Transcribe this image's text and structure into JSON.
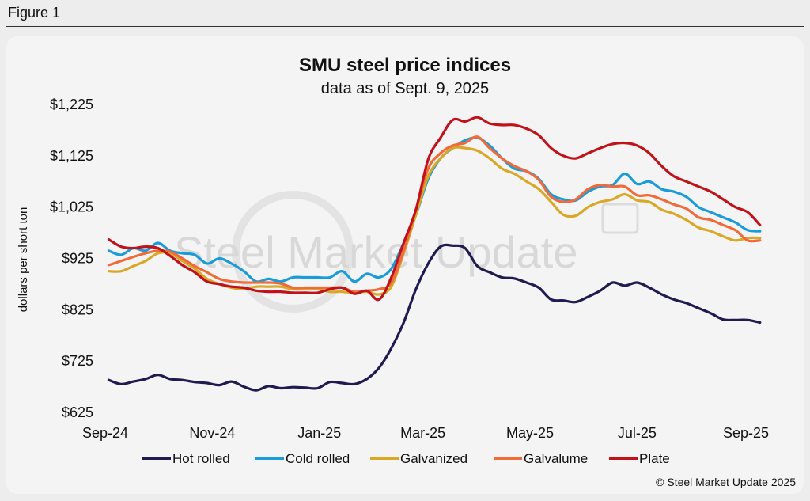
{
  "figure_label": "Figure 1",
  "watermark_text": "Steel Market Update",
  "copyright": "© Steel Market Update 2025",
  "chart_data": {
    "type": "line",
    "title": "SMU steel price indices",
    "subtitle": "data as of Sept. 9, 2025",
    "ylabel": "dollars per short ton",
    "ylim": [
      625,
      1225
    ],
    "yticks": [
      625,
      725,
      825,
      925,
      1025,
      1125,
      1225
    ],
    "ytick_labels": [
      "$625",
      "$725",
      "$825",
      "$925",
      "$1,025",
      "$1,125",
      "$1,225"
    ],
    "xlim": [
      "2024-09-01",
      "2025-09-10"
    ],
    "xticks": [
      "2024-09-01",
      "2024-11-01",
      "2025-01-01",
      "2025-03-01",
      "2025-05-01",
      "2025-07-01",
      "2025-09-01"
    ],
    "xtick_labels": [
      "Sep-24",
      "Nov-24",
      "Jan-25",
      "Mar-25",
      "May-25",
      "Jul-25",
      "Sep-25"
    ],
    "grid": false,
    "legend_position": "bottom",
    "x": [
      "2024-09-03",
      "2024-09-10",
      "2024-09-17",
      "2024-09-24",
      "2024-10-01",
      "2024-10-08",
      "2024-10-15",
      "2024-10-22",
      "2024-10-29",
      "2024-11-05",
      "2024-11-12",
      "2024-11-19",
      "2024-11-26",
      "2024-12-03",
      "2024-12-10",
      "2024-12-17",
      "2024-12-24",
      "2024-12-31",
      "2025-01-07",
      "2025-01-14",
      "2025-01-21",
      "2025-01-28",
      "2025-02-04",
      "2025-02-11",
      "2025-02-18",
      "2025-02-25",
      "2025-03-04",
      "2025-03-11",
      "2025-03-18",
      "2025-03-25",
      "2025-04-01",
      "2025-04-08",
      "2025-04-15",
      "2025-04-22",
      "2025-04-29",
      "2025-05-06",
      "2025-05-13",
      "2025-05-20",
      "2025-05-27",
      "2025-06-03",
      "2025-06-10",
      "2025-06-17",
      "2025-06-24",
      "2025-07-01",
      "2025-07-08",
      "2025-07-15",
      "2025-07-22",
      "2025-07-29",
      "2025-08-05",
      "2025-08-12",
      "2025-08-19",
      "2025-08-26",
      "2025-09-02",
      "2025-09-09"
    ],
    "series": [
      {
        "name": "Hot rolled",
        "color": "#1f1a4f",
        "values": [
          688,
          680,
          685,
          690,
          698,
          690,
          688,
          684,
          682,
          678,
          685,
          675,
          668,
          676,
          672,
          674,
          673,
          672,
          684,
          682,
          680,
          690,
          712,
          750,
          800,
          865,
          915,
          948,
          950,
          945,
          910,
          898,
          888,
          886,
          878,
          868,
          845,
          843,
          840,
          850,
          862,
          878,
          872,
          878,
          868,
          855,
          845,
          838,
          828,
          818,
          806,
          805,
          805,
          800
        ]
      },
      {
        "name": "Cold rolled",
        "color": "#1a9cd8",
        "values": [
          940,
          932,
          945,
          940,
          955,
          940,
          935,
          932,
          915,
          925,
          915,
          900,
          880,
          885,
          880,
          888,
          888,
          888,
          888,
          900,
          880,
          895,
          888,
          905,
          955,
          1010,
          1080,
          1120,
          1140,
          1155,
          1160,
          1145,
          1120,
          1100,
          1095,
          1080,
          1050,
          1040,
          1038,
          1055,
          1065,
          1068,
          1090,
          1070,
          1075,
          1060,
          1055,
          1045,
          1025,
          1015,
          1005,
          995,
          980,
          978
        ]
      },
      {
        "name": "Galvanized",
        "color": "#d8a826",
        "values": [
          900,
          900,
          910,
          920,
          935,
          935,
          920,
          905,
          885,
          875,
          868,
          865,
          870,
          870,
          870,
          865,
          865,
          865,
          860,
          860,
          858,
          860,
          855,
          870,
          935,
          1010,
          1085,
          1120,
          1140,
          1140,
          1135,
          1120,
          1100,
          1090,
          1075,
          1060,
          1035,
          1010,
          1008,
          1025,
          1035,
          1040,
          1050,
          1038,
          1035,
          1020,
          1012,
          1000,
          985,
          978,
          968,
          960,
          965,
          965
        ]
      },
      {
        "name": "Galvalume",
        "color": "#f06a3a",
        "values": [
          912,
          920,
          928,
          935,
          940,
          938,
          925,
          910,
          898,
          885,
          880,
          878,
          878,
          878,
          876,
          868,
          868,
          868,
          868,
          868,
          860,
          862,
          865,
          878,
          940,
          1020,
          1100,
          1130,
          1145,
          1150,
          1162,
          1140,
          1120,
          1105,
          1095,
          1078,
          1045,
          1035,
          1040,
          1060,
          1068,
          1065,
          1065,
          1048,
          1048,
          1040,
          1030,
          1022,
          1005,
          1000,
          990,
          980,
          960,
          960
        ]
      },
      {
        "name": "Plate",
        "color": "#c0121b",
        "values": [
          962,
          948,
          945,
          948,
          945,
          930,
          912,
          898,
          880,
          875,
          870,
          868,
          862,
          860,
          860,
          858,
          858,
          858,
          865,
          868,
          856,
          862,
          845,
          888,
          955,
          1020,
          1118,
          1160,
          1195,
          1192,
          1200,
          1188,
          1185,
          1185,
          1178,
          1165,
          1140,
          1125,
          1120,
          1130,
          1140,
          1148,
          1150,
          1145,
          1130,
          1105,
          1085,
          1075,
          1065,
          1055,
          1040,
          1025,
          1015,
          990
        ]
      }
    ]
  }
}
